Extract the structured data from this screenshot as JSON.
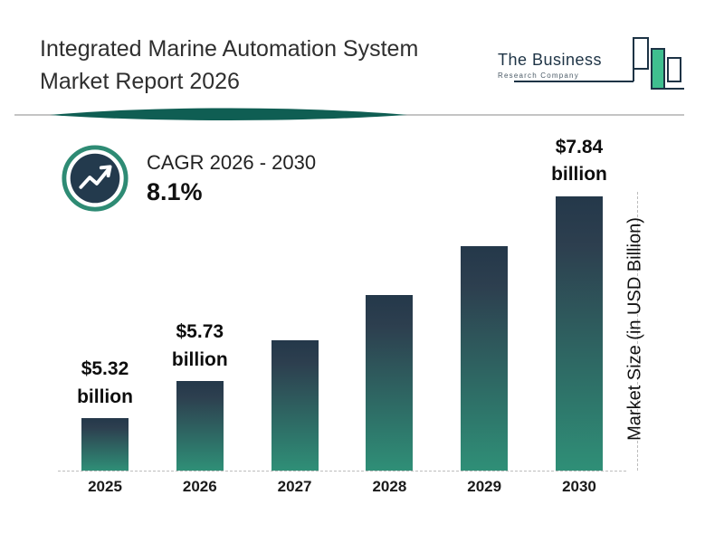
{
  "header": {
    "title_line1": "Integrated Marine Automation System",
    "title_line2": "Market Report 2026",
    "logo": {
      "line1": "The Business",
      "line2": "Research Company"
    }
  },
  "cagr": {
    "label": "CAGR 2026 - 2030",
    "value": "8.1%"
  },
  "chart_data": {
    "type": "bar",
    "title": "Integrated Marine Automation System Market Report 2026",
    "categories": [
      "2025",
      "2026",
      "2027",
      "2028",
      "2029",
      "2030"
    ],
    "values": [
      5.32,
      5.73,
      6.19,
      6.69,
      7.24,
      7.84
    ],
    "labels": [
      {
        "amount": "$5.32",
        "unit": "billion"
      },
      {
        "amount": "$5.73",
        "unit": "billion"
      },
      null,
      null,
      null,
      {
        "amount": "$7.84",
        "unit": "billion"
      }
    ],
    "xlabel": "",
    "ylabel": "Market Size (in USD Billion)",
    "ylim": [
      5.0,
      8.0
    ],
    "grid": false,
    "legend": false,
    "cagr_note": "CAGR 2026 - 2030 : 8.1%"
  },
  "colors": {
    "bar_top": "#24384a",
    "bar_bottom": "#2f8f77",
    "accent_teal": "#0f5e53",
    "ring_teal": "#2e8b74",
    "navy": "#1d3345",
    "logo_green": "#3fbf8f",
    "dash_gray": "#bdbdbd"
  }
}
